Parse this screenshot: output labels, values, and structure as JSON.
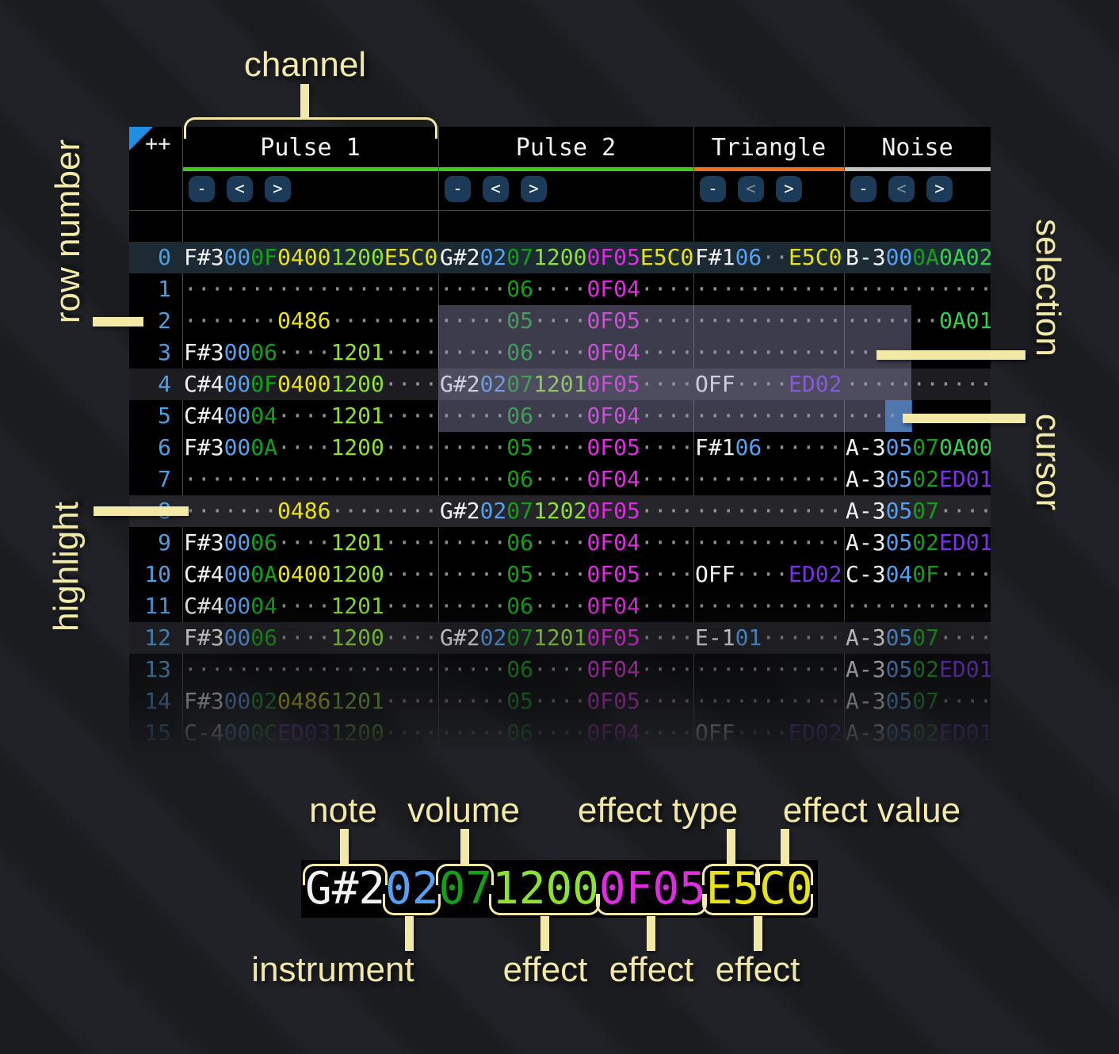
{
  "tracker": {
    "corner_label": "++",
    "channels": [
      {
        "name": "Pulse 1",
        "meter_color": "#3fcb17",
        "buttons": [
          {
            "label": "-",
            "enabled": true
          },
          {
            "label": "<",
            "enabled": true
          },
          {
            "label": ">",
            "enabled": true
          }
        ]
      },
      {
        "name": "Pulse 2",
        "meter_color": "#3fcb17",
        "buttons": [
          {
            "label": "-",
            "enabled": true
          },
          {
            "label": "<",
            "enabled": true
          },
          {
            "label": ">",
            "enabled": true
          }
        ]
      },
      {
        "name": "Triangle",
        "meter_color": "#f0701f",
        "buttons": [
          {
            "label": "-",
            "enabled": true
          },
          {
            "label": "<",
            "enabled": false
          },
          {
            "label": ">",
            "enabled": true
          }
        ]
      },
      {
        "name": "Noise",
        "meter_color": "#c2c2c2",
        "buttons": [
          {
            "label": "-",
            "enabled": true
          },
          {
            "label": "<",
            "enabled": false
          },
          {
            "label": ">",
            "enabled": true
          }
        ]
      }
    ],
    "colors": {
      "note": "#f2f2f2",
      "instrument": "#55a0f0",
      "volume": "#12a018",
      "empty_dot": "#8f8f8f",
      "fx_yellow": "#e8e414",
      "fx_lime": "#8ce32e",
      "fx_magenta": "#e02ce0",
      "fx_violet": "#7d32e8",
      "fx_green": "#2fd447",
      "row_number": "#4c9fe0",
      "selection": "rgba(150,150,190,0.40)",
      "cursor": "#2164a8",
      "row_major_bg": "#1c2a34",
      "row_minor_bg": "#1d1d21",
      "row_highlight_bg": "#26262a"
    },
    "rows": [
      {
        "n": "0",
        "p1": [
          [
            "note",
            "F#3"
          ],
          [
            "inst",
            "00"
          ],
          [
            "vol",
            "0F"
          ],
          [
            "fy",
            "0400"
          ],
          [
            "fl",
            "1200"
          ],
          [
            "fy",
            "E5C0"
          ]
        ],
        "p2": [
          [
            "note",
            "G#2"
          ],
          [
            "inst",
            "02"
          ],
          [
            "vol",
            "07"
          ],
          [
            "fl",
            "1200"
          ],
          [
            "fm",
            "0F05"
          ],
          [
            "fy",
            "E5C0"
          ]
        ],
        "tri": [
          [
            "note",
            "F#1"
          ],
          [
            "inst",
            "06"
          ],
          [
            "dot",
            "··"
          ],
          [
            "fy",
            "E5C0"
          ]
        ],
        "noi": [
          [
            "note",
            "B-3"
          ],
          [
            "inst",
            "00"
          ],
          [
            "vol",
            "0A"
          ],
          [
            "fg",
            "0A02"
          ]
        ]
      },
      {
        "n": "1",
        "p1": [
          [
            "dot",
            "···················"
          ]
        ],
        "p2": [
          [
            "dot",
            "·····"
          ],
          [
            "vol",
            "06"
          ],
          [
            "dot",
            "····"
          ],
          [
            "fm",
            "0F04"
          ],
          [
            "dot",
            "····"
          ]
        ],
        "tri": [
          [
            "dot",
            "···········"
          ]
        ],
        "noi": [
          [
            "dot",
            "···········"
          ]
        ]
      },
      {
        "n": "2",
        "p1": [
          [
            "dot",
            "·······"
          ],
          [
            "fy",
            "0486"
          ],
          [
            "dot",
            "········"
          ]
        ],
        "p2": [
          [
            "dot",
            "·····"
          ],
          [
            "vol",
            "05"
          ],
          [
            "dot",
            "····"
          ],
          [
            "fm",
            "0F05"
          ],
          [
            "dot",
            "····"
          ]
        ],
        "tri": [
          [
            "dot",
            "···········"
          ]
        ],
        "noi": [
          [
            "dot",
            "·······"
          ],
          [
            "fg",
            "0A01"
          ]
        ]
      },
      {
        "n": "3",
        "p1": [
          [
            "note",
            "F#3"
          ],
          [
            "inst",
            "00"
          ],
          [
            "vol",
            "06"
          ],
          [
            "dot",
            "····"
          ],
          [
            "fl",
            "1201"
          ],
          [
            "dot",
            "····"
          ]
        ],
        "p2": [
          [
            "dot",
            "·····"
          ],
          [
            "vol",
            "06"
          ],
          [
            "dot",
            "····"
          ],
          [
            "fm",
            "0F04"
          ],
          [
            "dot",
            "····"
          ]
        ],
        "tri": [
          [
            "dot",
            "···········"
          ]
        ],
        "noi": [
          [
            "dot",
            "···········"
          ]
        ]
      },
      {
        "n": "4",
        "p1": [
          [
            "note",
            "C#4"
          ],
          [
            "inst",
            "00"
          ],
          [
            "vol",
            "0F"
          ],
          [
            "fy",
            "0400"
          ],
          [
            "fl",
            "1200"
          ],
          [
            "dot",
            "····"
          ]
        ],
        "p2": [
          [
            "note",
            "G#2"
          ],
          [
            "inst",
            "02"
          ],
          [
            "vol",
            "07"
          ],
          [
            "fl",
            "1201"
          ],
          [
            "fm",
            "0F05"
          ],
          [
            "dot",
            "····"
          ]
        ],
        "tri": [
          [
            "note",
            "OFF"
          ],
          [
            "dot",
            "····"
          ],
          [
            "fv",
            "ED02"
          ]
        ],
        "noi": [
          [
            "dot",
            "···········"
          ]
        ]
      },
      {
        "n": "5",
        "p1": [
          [
            "note",
            "C#4"
          ],
          [
            "inst",
            "00"
          ],
          [
            "vol",
            "04"
          ],
          [
            "dot",
            "····"
          ],
          [
            "fl",
            "1201"
          ],
          [
            "dot",
            "····"
          ]
        ],
        "p2": [
          [
            "dot",
            "·····"
          ],
          [
            "vol",
            "06"
          ],
          [
            "dot",
            "····"
          ],
          [
            "fm",
            "0F04"
          ],
          [
            "dot",
            "····"
          ]
        ],
        "tri": [
          [
            "dot",
            "···········"
          ]
        ],
        "noi": [
          [
            "dot",
            "···········"
          ]
        ]
      },
      {
        "n": "6",
        "p1": [
          [
            "note",
            "F#3"
          ],
          [
            "inst",
            "00"
          ],
          [
            "vol",
            "0A"
          ],
          [
            "dot",
            "····"
          ],
          [
            "fl",
            "1200"
          ],
          [
            "dot",
            "····"
          ]
        ],
        "p2": [
          [
            "dot",
            "·····"
          ],
          [
            "vol",
            "05"
          ],
          [
            "dot",
            "····"
          ],
          [
            "fm",
            "0F05"
          ],
          [
            "dot",
            "····"
          ]
        ],
        "tri": [
          [
            "note",
            "F#1"
          ],
          [
            "inst",
            "06"
          ],
          [
            "dot",
            "······"
          ]
        ],
        "noi": [
          [
            "note",
            "A-3"
          ],
          [
            "inst",
            "05"
          ],
          [
            "vol",
            "07"
          ],
          [
            "fg",
            "0A00"
          ]
        ]
      },
      {
        "n": "7",
        "p1": [
          [
            "dot",
            "···················"
          ]
        ],
        "p2": [
          [
            "dot",
            "·····"
          ],
          [
            "vol",
            "06"
          ],
          [
            "dot",
            "····"
          ],
          [
            "fm",
            "0F04"
          ],
          [
            "dot",
            "····"
          ]
        ],
        "tri": [
          [
            "dot",
            "···········"
          ]
        ],
        "noi": [
          [
            "note",
            "A-3"
          ],
          [
            "inst",
            "05"
          ],
          [
            "vol",
            "02"
          ],
          [
            "fv",
            "ED01"
          ]
        ]
      },
      {
        "n": "8",
        "p1": [
          [
            "dot",
            "·······"
          ],
          [
            "fy",
            "0486"
          ],
          [
            "dot",
            "········"
          ]
        ],
        "p2": [
          [
            "note",
            "G#2"
          ],
          [
            "inst",
            "02"
          ],
          [
            "vol",
            "07"
          ],
          [
            "fl",
            "1202"
          ],
          [
            "fm",
            "0F05"
          ],
          [
            "dot",
            "····"
          ]
        ],
        "tri": [
          [
            "dot",
            "···········"
          ]
        ],
        "noi": [
          [
            "note",
            "A-3"
          ],
          [
            "inst",
            "05"
          ],
          [
            "vol",
            "07"
          ],
          [
            "dot",
            "····"
          ]
        ]
      },
      {
        "n": "9",
        "p1": [
          [
            "note",
            "F#3"
          ],
          [
            "inst",
            "00"
          ],
          [
            "vol",
            "06"
          ],
          [
            "dot",
            "····"
          ],
          [
            "fl",
            "1201"
          ],
          [
            "dot",
            "····"
          ]
        ],
        "p2": [
          [
            "dot",
            "·····"
          ],
          [
            "vol",
            "06"
          ],
          [
            "dot",
            "····"
          ],
          [
            "fm",
            "0F04"
          ],
          [
            "dot",
            "····"
          ]
        ],
        "tri": [
          [
            "dot",
            "···········"
          ]
        ],
        "noi": [
          [
            "note",
            "A-3"
          ],
          [
            "inst",
            "05"
          ],
          [
            "vol",
            "02"
          ],
          [
            "fv",
            "ED01"
          ]
        ]
      },
      {
        "n": "10",
        "p1": [
          [
            "note",
            "C#4"
          ],
          [
            "inst",
            "00"
          ],
          [
            "vol",
            "0A"
          ],
          [
            "fy",
            "0400"
          ],
          [
            "fl",
            "1200"
          ],
          [
            "dot",
            "····"
          ]
        ],
        "p2": [
          [
            "dot",
            "·····"
          ],
          [
            "vol",
            "05"
          ],
          [
            "dot",
            "····"
          ],
          [
            "fm",
            "0F05"
          ],
          [
            "dot",
            "····"
          ]
        ],
        "tri": [
          [
            "note",
            "OFF"
          ],
          [
            "dot",
            "····"
          ],
          [
            "fv",
            "ED02"
          ]
        ],
        "noi": [
          [
            "note",
            "C-3"
          ],
          [
            "inst",
            "04"
          ],
          [
            "vol",
            "0F"
          ],
          [
            "dot",
            "····"
          ]
        ]
      },
      {
        "n": "11",
        "p1": [
          [
            "note",
            "C#4"
          ],
          [
            "inst",
            "00"
          ],
          [
            "vol",
            "04"
          ],
          [
            "dot",
            "····"
          ],
          [
            "fl",
            "1201"
          ],
          [
            "dot",
            "····"
          ]
        ],
        "p2": [
          [
            "dot",
            "·····"
          ],
          [
            "vol",
            "06"
          ],
          [
            "dot",
            "····"
          ],
          [
            "fm",
            "0F04"
          ],
          [
            "dot",
            "····"
          ]
        ],
        "tri": [
          [
            "dot",
            "···········"
          ]
        ],
        "noi": [
          [
            "dot",
            "···········"
          ]
        ]
      },
      {
        "n": "12",
        "p1": [
          [
            "note",
            "F#3"
          ],
          [
            "inst",
            "00"
          ],
          [
            "vol",
            "06"
          ],
          [
            "dot",
            "····"
          ],
          [
            "fl",
            "1200"
          ],
          [
            "dot",
            "····"
          ]
        ],
        "p2": [
          [
            "note",
            "G#2"
          ],
          [
            "inst",
            "02"
          ],
          [
            "vol",
            "07"
          ],
          [
            "fl",
            "1201"
          ],
          [
            "fm",
            "0F05"
          ],
          [
            "dot",
            "····"
          ]
        ],
        "tri": [
          [
            "note",
            "E-1"
          ],
          [
            "inst",
            "01"
          ],
          [
            "dot",
            "······"
          ]
        ],
        "noi": [
          [
            "note",
            "A-3"
          ],
          [
            "inst",
            "05"
          ],
          [
            "vol",
            "07"
          ],
          [
            "dot",
            "····"
          ]
        ]
      },
      {
        "n": "13",
        "p1": [
          [
            "dot",
            "···················"
          ]
        ],
        "p2": [
          [
            "dot",
            "·····"
          ],
          [
            "vol",
            "06"
          ],
          [
            "dot",
            "····"
          ],
          [
            "fm",
            "0F04"
          ],
          [
            "dot",
            "····"
          ]
        ],
        "tri": [
          [
            "dot",
            "···········"
          ]
        ],
        "noi": [
          [
            "note",
            "A-3"
          ],
          [
            "inst",
            "05"
          ],
          [
            "vol",
            "02"
          ],
          [
            "fv",
            "ED01"
          ]
        ]
      },
      {
        "n": "14",
        "p1": [
          [
            "note",
            "F#3"
          ],
          [
            "inst",
            "00"
          ],
          [
            "vol",
            "02"
          ],
          [
            "fy",
            "0486"
          ],
          [
            "fl",
            "1201"
          ],
          [
            "dot",
            "····"
          ]
        ],
        "p2": [
          [
            "dot",
            "·····"
          ],
          [
            "vol",
            "05"
          ],
          [
            "dot",
            "····"
          ],
          [
            "fm",
            "0F05"
          ],
          [
            "dot",
            "····"
          ]
        ],
        "tri": [
          [
            "dot",
            "···········"
          ]
        ],
        "noi": [
          [
            "note",
            "A-3"
          ],
          [
            "inst",
            "05"
          ],
          [
            "vol",
            "07"
          ],
          [
            "dot",
            "····"
          ]
        ]
      },
      {
        "n": "15",
        "p1": [
          [
            "note",
            "C-4"
          ],
          [
            "inst",
            "00"
          ],
          [
            "vol",
            "0C"
          ],
          [
            "fv",
            "ED03"
          ],
          [
            "fl",
            "1200"
          ],
          [
            "dot",
            "····"
          ]
        ],
        "p2": [
          [
            "dot",
            "·····"
          ],
          [
            "vol",
            "06"
          ],
          [
            "dot",
            "····"
          ],
          [
            "fm",
            "0F04"
          ],
          [
            "dot",
            "····"
          ]
        ],
        "tri": [
          [
            "note",
            "OFF"
          ],
          [
            "dot",
            "····"
          ],
          [
            "fv",
            "ED02"
          ]
        ],
        "noi": [
          [
            "note",
            "A-3"
          ],
          [
            "inst",
            "05"
          ],
          [
            "vol",
            "02"
          ],
          [
            "fv",
            "ED01"
          ]
        ]
      }
    ]
  },
  "annotations": {
    "channel": "channel",
    "row_number": "row number",
    "highlight": "highlight",
    "selection": "selection",
    "cursor": "cursor",
    "note": "note",
    "volume": "volume",
    "effect_type": "effect type",
    "effect_value": "effect value",
    "instrument": "instrument",
    "effect": "effect",
    "accent_color": "#f2e9a6"
  },
  "example": {
    "segments": [
      [
        "note",
        "G#2"
      ],
      [
        "inst",
        "02"
      ],
      [
        "vol",
        "07"
      ],
      [
        "fl",
        "1200"
      ],
      [
        "fm",
        "0F05"
      ],
      [
        "fy",
        "E5C0"
      ]
    ]
  }
}
